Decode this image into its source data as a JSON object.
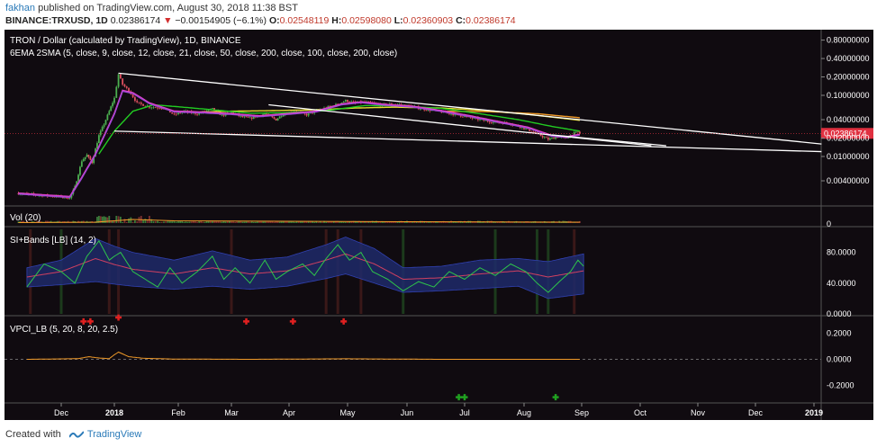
{
  "header": {
    "user": "fakhan",
    "published": "published on TradingView.com, August 30, 2018 11:38 BST",
    "symbol": "BINANCE:TRXUSD, 1D",
    "price": "0.02386174",
    "arrow": "▼",
    "change": "−0.00154905 (−6.1%)",
    "o_label": "O:",
    "o": "0.02548119",
    "h_label": "H:",
    "h": "0.02598080",
    "l_label": "L:",
    "l": "0.02360903",
    "c_label": "C:",
    "c": "0.02386174"
  },
  "footer": {
    "created": "Created with",
    "brand": "TradingView"
  },
  "colors": {
    "background": "#100b10",
    "axis_text": "#ffffff",
    "up": "#4caf50",
    "down": "#e05060",
    "ema_magenta": "#e040c8",
    "sma_green": "#22cc22",
    "sma_yellow": "#e8e030",
    "sma_orange": "#f09a28",
    "trendline": "#ffffff",
    "price_tag": "#e03040"
  },
  "chart_data": [
    {
      "type": "candlestick",
      "title": "TRON / Dollar (calculated by TradingView), 1D, BINANCE",
      "subtitle": "6EMA 2SMA (5, close, 9, close, 12, close, 21, close, 50, close, 200, close, 100, close, 200, close)",
      "y_scale": "log",
      "y_ticks": [
        "0.80000000",
        "0.40000000",
        "0.20000000",
        "0.10000000",
        "0.04000000",
        "0.02000000",
        "0.01000000",
        "0.00400000"
      ],
      "y_tick_values": [
        0.8,
        0.4,
        0.2,
        0.1,
        0.04,
        0.02,
        0.01,
        0.004
      ],
      "x_ticks": [
        "Dec",
        "2018",
        "Feb",
        "Mar",
        "Apr",
        "May",
        "Jun",
        "Jul",
        "Aug",
        "Sep",
        "Oct",
        "Nov",
        "Dec",
        "2019"
      ],
      "x_tick_days": [
        0,
        31,
        62,
        90,
        121,
        151,
        182,
        212,
        243,
        274,
        304,
        335,
        365,
        396
      ],
      "last_price": "0.02386174",
      "last_value": 0.02386174,
      "price_path": [
        [
          -25,
          0.0025
        ],
        [
          -10,
          0.0023
        ],
        [
          0,
          0.0022
        ],
        [
          5,
          0.0021
        ],
        [
          8,
          0.0032
        ],
        [
          12,
          0.0085
        ],
        [
          15,
          0.0105
        ],
        [
          18,
          0.008
        ],
        [
          22,
          0.022
        ],
        [
          25,
          0.034
        ],
        [
          28,
          0.055
        ],
        [
          31,
          0.09
        ],
        [
          33,
          0.22
        ],
        [
          35,
          0.15
        ],
        [
          38,
          0.12
        ],
        [
          42,
          0.075
        ],
        [
          48,
          0.065
        ],
        [
          55,
          0.062
        ],
        [
          60,
          0.048
        ],
        [
          65,
          0.055
        ],
        [
          72,
          0.05
        ],
        [
          80,
          0.06
        ],
        [
          85,
          0.047
        ],
        [
          90,
          0.052
        ],
        [
          95,
          0.045
        ],
        [
          100,
          0.042
        ],
        [
          108,
          0.05
        ],
        [
          114,
          0.04
        ],
        [
          118,
          0.05
        ],
        [
          124,
          0.055
        ],
        [
          130,
          0.048
        ],
        [
          138,
          0.06
        ],
        [
          145,
          0.07
        ],
        [
          150,
          0.082
        ],
        [
          155,
          0.075
        ],
        [
          160,
          0.078
        ],
        [
          168,
          0.07
        ],
        [
          175,
          0.072
        ],
        [
          182,
          0.068
        ],
        [
          190,
          0.06
        ],
        [
          198,
          0.055
        ],
        [
          205,
          0.05
        ],
        [
          212,
          0.045
        ],
        [
          220,
          0.04
        ],
        [
          228,
          0.036
        ],
        [
          235,
          0.035
        ],
        [
          242,
          0.03
        ],
        [
          247,
          0.026
        ],
        [
          252,
          0.022
        ],
        [
          256,
          0.019
        ],
        [
          261,
          0.021
        ],
        [
          266,
          0.02
        ],
        [
          270,
          0.024
        ],
        [
          272,
          0.025
        ],
        [
          273,
          0.0239
        ]
      ],
      "ema_path": [
        [
          -25,
          0.0025
        ],
        [
          5,
          0.0022
        ],
        [
          12,
          0.0045
        ],
        [
          20,
          0.011
        ],
        [
          26,
          0.025
        ],
        [
          31,
          0.05
        ],
        [
          35,
          0.12
        ],
        [
          40,
          0.11
        ],
        [
          48,
          0.075
        ],
        [
          60,
          0.055
        ],
        [
          75,
          0.053
        ],
        [
          90,
          0.05
        ],
        [
          105,
          0.046
        ],
        [
          120,
          0.05
        ],
        [
          135,
          0.055
        ],
        [
          148,
          0.072
        ],
        [
          158,
          0.078
        ],
        [
          170,
          0.071
        ],
        [
          185,
          0.066
        ],
        [
          200,
          0.056
        ],
        [
          215,
          0.046
        ],
        [
          230,
          0.037
        ],
        [
          245,
          0.03
        ],
        [
          258,
          0.022
        ],
        [
          266,
          0.021
        ],
        [
          273,
          0.023
        ]
      ],
      "sma50_path": [
        [
          22,
          0.011
        ],
        [
          31,
          0.026
        ],
        [
          40,
          0.055
        ],
        [
          50,
          0.07
        ],
        [
          62,
          0.065
        ],
        [
          80,
          0.058
        ],
        [
          100,
          0.051
        ],
        [
          120,
          0.052
        ],
        [
          140,
          0.056
        ],
        [
          160,
          0.068
        ],
        [
          180,
          0.067
        ],
        [
          200,
          0.061
        ],
        [
          220,
          0.05
        ],
        [
          240,
          0.04
        ],
        [
          258,
          0.031
        ],
        [
          273,
          0.026
        ]
      ],
      "sma100_path": [
        [
          72,
          0.053
        ],
        [
          90,
          0.055
        ],
        [
          110,
          0.056
        ],
        [
          135,
          0.058
        ],
        [
          155,
          0.062
        ],
        [
          175,
          0.064
        ],
        [
          200,
          0.062
        ],
        [
          225,
          0.056
        ],
        [
          250,
          0.047
        ],
        [
          273,
          0.039
        ]
      ],
      "sma200_path": [
        [
          200,
          0.055
        ],
        [
          225,
          0.054
        ],
        [
          250,
          0.05
        ],
        [
          273,
          0.043
        ]
      ],
      "trendlines": [
        {
          "from": [
            33,
            0.23
          ],
          "to": [
            400,
            0.016
          ]
        },
        {
          "from": [
            31,
            0.026
          ],
          "to": [
            400,
            0.012
          ]
        },
        {
          "from": [
            110,
            0.07
          ],
          "to": [
            310,
            0.015
          ]
        },
        {
          "from": [
            258,
            0.0225
          ],
          "to": [
            318,
            0.015
          ]
        }
      ]
    },
    {
      "type": "bar",
      "title": "Vol (20)",
      "y_ticks": [
        "0"
      ]
    },
    {
      "type": "line",
      "title": "SI+Bands [LB] (14, 2)",
      "y_ticks": [
        "80.0000",
        "40.0000",
        "0.0000"
      ],
      "y_tick_values": [
        80,
        40,
        0
      ],
      "y_range": [
        0,
        110
      ],
      "si_path": [
        [
          -20,
          35
        ],
        [
          -10,
          65
        ],
        [
          0,
          55
        ],
        [
          8,
          40
        ],
        [
          15,
          75
        ],
        [
          22,
          95
        ],
        [
          28,
          70
        ],
        [
          34,
          80
        ],
        [
          40,
          55
        ],
        [
          46,
          45
        ],
        [
          52,
          35
        ],
        [
          58,
          60
        ],
        [
          64,
          40
        ],
        [
          72,
          55
        ],
        [
          80,
          75
        ],
        [
          86,
          45
        ],
        [
          92,
          60
        ],
        [
          100,
          40
        ],
        [
          108,
          70
        ],
        [
          114,
          45
        ],
        [
          120,
          55
        ],
        [
          128,
          65
        ],
        [
          134,
          50
        ],
        [
          140,
          72
        ],
        [
          146,
          90
        ],
        [
          152,
          70
        ],
        [
          158,
          80
        ],
        [
          164,
          55
        ],
        [
          172,
          45
        ],
        [
          180,
          30
        ],
        [
          188,
          42
        ],
        [
          196,
          35
        ],
        [
          204,
          55
        ],
        [
          212,
          45
        ],
        [
          220,
          60
        ],
        [
          228,
          50
        ],
        [
          236,
          65
        ],
        [
          244,
          55
        ],
        [
          250,
          40
        ],
        [
          256,
          28
        ],
        [
          262,
          42
        ],
        [
          268,
          55
        ],
        [
          272,
          70
        ],
        [
          275,
          62
        ]
      ],
      "upper_band_path": [
        [
          -20,
          60
        ],
        [
          0,
          70
        ],
        [
          20,
          98
        ],
        [
          40,
          80
        ],
        [
          60,
          70
        ],
        [
          80,
          82
        ],
        [
          100,
          70
        ],
        [
          120,
          74
        ],
        [
          140,
          90
        ],
        [
          150,
          100
        ],
        [
          165,
          85
        ],
        [
          180,
          60
        ],
        [
          200,
          62
        ],
        [
          220,
          70
        ],
        [
          240,
          72
        ],
        [
          256,
          68
        ],
        [
          275,
          78
        ]
      ],
      "basis_path": [
        [
          -20,
          48
        ],
        [
          0,
          55
        ],
        [
          20,
          72
        ],
        [
          40,
          58
        ],
        [
          60,
          52
        ],
        [
          80,
          60
        ],
        [
          100,
          52
        ],
        [
          120,
          56
        ],
        [
          140,
          70
        ],
        [
          150,
          78
        ],
        [
          165,
          65
        ],
        [
          180,
          45
        ],
        [
          200,
          47
        ],
        [
          220,
          52
        ],
        [
          240,
          56
        ],
        [
          256,
          48
        ],
        [
          275,
          56
        ]
      ],
      "lower_band_path": [
        [
          -20,
          35
        ],
        [
          0,
          38
        ],
        [
          20,
          42
        ],
        [
          40,
          36
        ],
        [
          60,
          32
        ],
        [
          80,
          36
        ],
        [
          100,
          32
        ],
        [
          120,
          36
        ],
        [
          140,
          46
        ],
        [
          150,
          52
        ],
        [
          165,
          40
        ],
        [
          180,
          28
        ],
        [
          200,
          30
        ],
        [
          220,
          33
        ],
        [
          240,
          36
        ],
        [
          256,
          20
        ],
        [
          275,
          26
        ]
      ]
    },
    {
      "type": "line",
      "title": "VPCI_LB (5, 20, 8, 20, 2.5)",
      "y_ticks": [
        "0.2000",
        "0.0000",
        "-0.2000"
      ],
      "y_tick_values": [
        0.2,
        0,
        -0.2
      ],
      "y_range": [
        -0.32,
        0.32
      ],
      "vpci_path": [
        [
          -20,
          0
        ],
        [
          10,
          0.005
        ],
        [
          16,
          0.02
        ],
        [
          22,
          0.01
        ],
        [
          28,
          0.005
        ],
        [
          33,
          0.055
        ],
        [
          38,
          0.02
        ],
        [
          45,
          0.008
        ],
        [
          60,
          0.002
        ],
        [
          100,
          0
        ],
        [
          150,
          0.004
        ],
        [
          200,
          0
        ],
        [
          273,
          0
        ]
      ],
      "sell_markers": [
        [
          33,
          0.32
        ],
        [
          98,
          0.29
        ],
        [
          123,
          0.29
        ],
        [
          149,
          0.29
        ],
        [
          13,
          0.29
        ],
        [
          17,
          0.29
        ]
      ],
      "buy_markers": [
        [
          209,
          -0.29
        ],
        [
          212,
          -0.29
        ],
        [
          260,
          -0.29
        ]
      ]
    }
  ]
}
